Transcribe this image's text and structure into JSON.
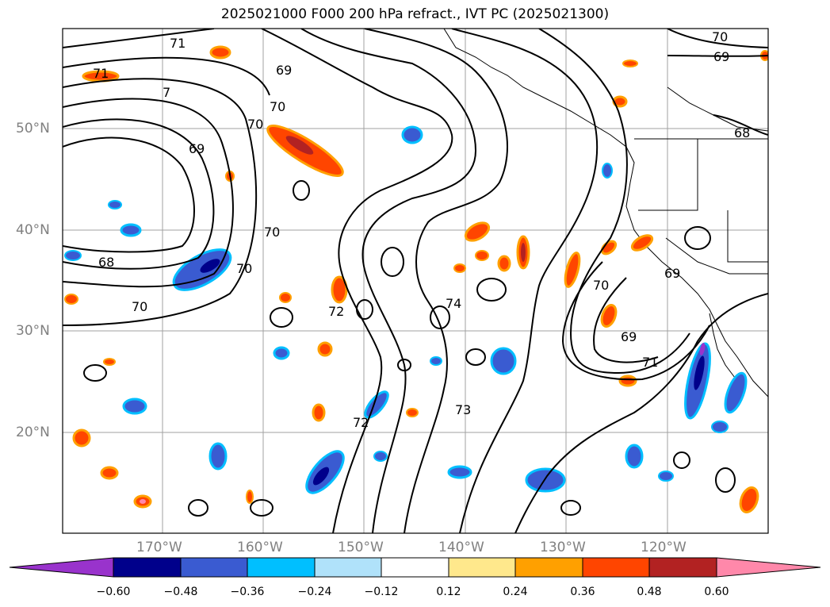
{
  "title": "2025021000 F000 200 hPa refract., IVT PC (2025021300)",
  "map": {
    "latitude_labels": [
      "50°N",
      "40°N",
      "30°N",
      "20°N"
    ],
    "longitude_labels": [
      "170°W",
      "160°W",
      "150°W",
      "140°W",
      "130°W",
      "120°W"
    ],
    "contour_labels": [
      "71",
      "71",
      "7",
      "69",
      "70",
      "70",
      "69",
      "70",
      "68",
      "70",
      "70",
      "74",
      "70",
      "69",
      "69",
      "71",
      "73",
      "72",
      "70",
      "69",
      "68",
      "72"
    ]
  },
  "colorbar": {
    "tick_labels": [
      "−0.60",
      "−0.48",
      "−0.36",
      "−0.24",
      "−0.12",
      "0.12",
      "0.24",
      "0.36",
      "0.48",
      "0.60"
    ],
    "colors": [
      "#9933cc",
      "#00008b",
      "#3a5bd1",
      "#00bfff",
      "#b0e2fa",
      "#ffffff",
      "#ffe88c",
      "#ffa000",
      "#ff4500",
      "#b22222",
      "#ff88aa"
    ]
  }
}
